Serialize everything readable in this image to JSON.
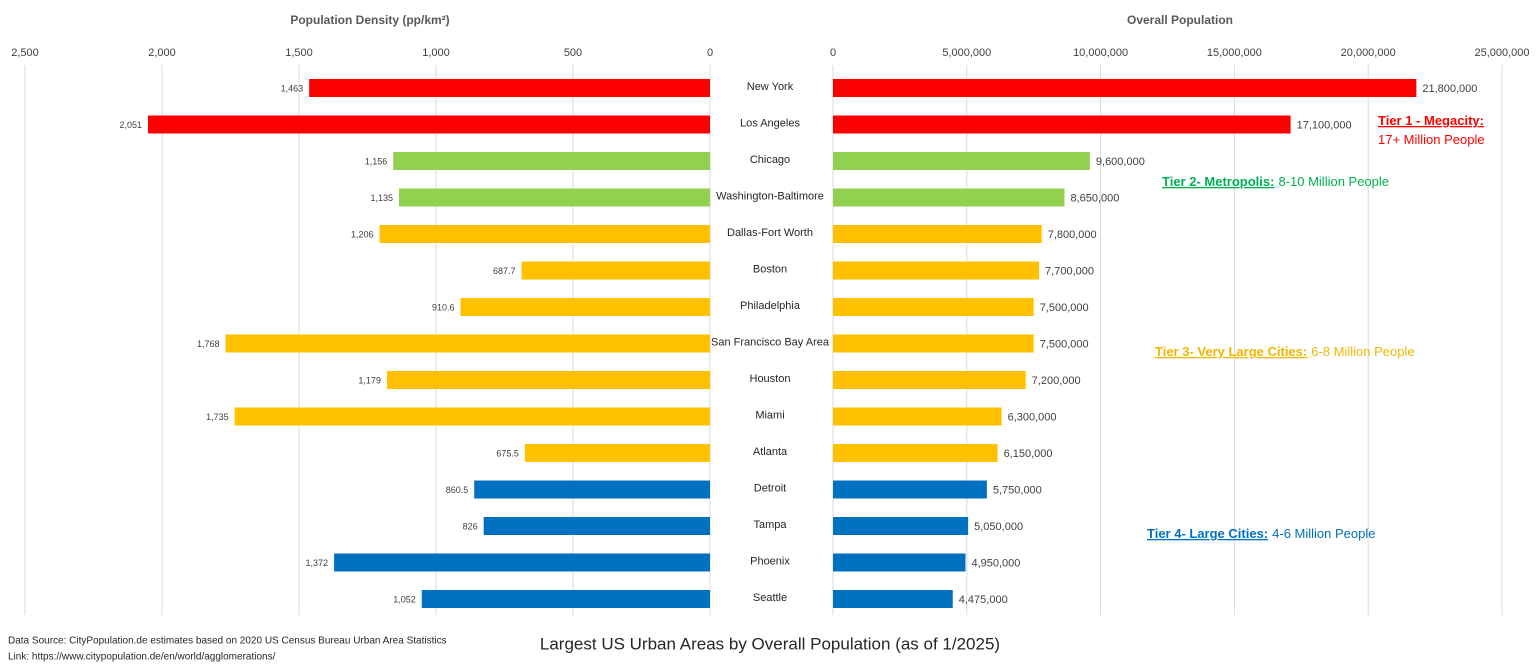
{
  "chart_data": [
    {
      "type": "bar",
      "orientation": "horizontal",
      "x_reversed": true,
      "axis_title": "Population Density (pp/km²)",
      "categories": [
        "New York",
        "Los Angeles",
        "Chicago",
        "Washington-Baltimore",
        "Dallas-Fort Worth",
        "Boston",
        "Philadelphia",
        "San Francisco Bay Area",
        "Houston",
        "Miami",
        "Atlanta",
        "Detroit",
        "Tampa",
        "Phoenix",
        "Seattle"
      ],
      "values": [
        1463,
        2051,
        1156,
        1135,
        1206,
        687.7,
        910.6,
        1768,
        1179,
        1735,
        675.5,
        860.5,
        826,
        1372,
        1052
      ],
      "value_labels": [
        "1,463",
        "2,051",
        "1,156",
        "1,135",
        "1,206",
        "687.7",
        "910.6",
        "1,768",
        "1,179",
        "1,735",
        "675.5",
        "860.5",
        "826",
        "1,372",
        "1,052"
      ],
      "colors": [
        "#ff0000",
        "#ff0000",
        "#92d050",
        "#92d050",
        "#ffc000",
        "#ffc000",
        "#ffc000",
        "#ffc000",
        "#ffc000",
        "#ffc000",
        "#ffc000",
        "#0070c0",
        "#0070c0",
        "#0070c0",
        "#0070c0"
      ],
      "xlim": [
        0,
        2500
      ],
      "xticks": [
        {
          "value": 2500,
          "label": "2,500"
        },
        {
          "value": 2000,
          "label": "2,000"
        },
        {
          "value": 1500,
          "label": "1,500"
        },
        {
          "value": 1000,
          "label": "1,000"
        },
        500,
        0
      ],
      "grid": true
    },
    {
      "type": "bar",
      "orientation": "horizontal",
      "x_reversed": false,
      "axis_title": "Overall Population",
      "values": [
        21800000,
        17100000,
        9600000,
        8650000,
        7800000,
        7700000,
        7500000,
        7500000,
        7200000,
        6300000,
        6150000,
        5750000,
        5050000,
        4950000,
        4475000
      ],
      "value_labels": [
        "21,800,000",
        "17,100,000",
        "9,600,000",
        "8,650,000",
        "7,800,000",
        "7,700,000",
        "7,500,000",
        "7,500,000",
        "7,200,000",
        "6,300,000",
        "6,150,000",
        "5,750,000",
        "5,050,000",
        "4,950,000",
        "4,475,000"
      ],
      "colors": [
        "#ff0000",
        "#ff0000",
        "#92d050",
        "#92d050",
        "#ffc000",
        "#ffc000",
        "#ffc000",
        "#ffc000",
        "#ffc000",
        "#ffc000",
        "#ffc000",
        "#0070c0",
        "#0070c0",
        "#0070c0",
        "#0070c0"
      ],
      "xlim": [
        0,
        25000000
      ],
      "xticks": [
        0,
        {
          "value": 5000000,
          "label": "5,000,000"
        },
        {
          "value": 10000000,
          "label": "10,000,000"
        },
        {
          "value": 15000000,
          "label": "15,000,000"
        },
        {
          "value": 20000000,
          "label": "20,000,000"
        },
        {
          "value": 25000000,
          "label": "25,000,000"
        }
      ],
      "grid": true,
      "annotations": [
        {
          "label": "Tier 1 - Megacity:",
          "text": "17+ Million People",
          "color": "#ff0000"
        },
        {
          "label": "Tier 2- Metropolis:",
          "text": "8-10 Million People",
          "color": "#00b050"
        },
        {
          "label": "Tier 3- Very Large Cities:",
          "text": "6-8 Million People",
          "color": "#f2b600"
        },
        {
          "label": "Tier 4- Large Cities:",
          "text": "4-6 Million People",
          "color": "#0070c0"
        }
      ]
    }
  ],
  "title": "Largest US Urban Areas by Overall Population (as of 1/2025)",
  "source": "Data Source: CityPopulation.de estimates based on 2020 US Census Bureau Urban Area Statistics",
  "link": "Link: https://www.citypopulation.de/en/world/agglomerations/"
}
